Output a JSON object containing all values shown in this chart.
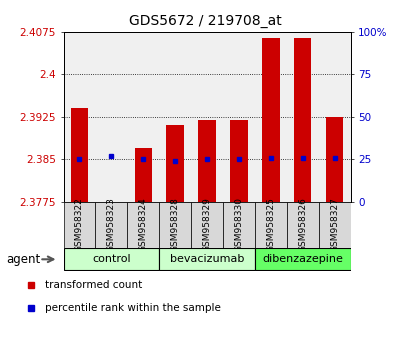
{
  "title": "GDS5672 / 219708_at",
  "samples": [
    "GSM958322",
    "GSM958323",
    "GSM958324",
    "GSM958328",
    "GSM958329",
    "GSM958330",
    "GSM958325",
    "GSM958326",
    "GSM958327"
  ],
  "transformed_count": [
    2.394,
    2.3775,
    2.387,
    2.391,
    2.392,
    2.392,
    2.4065,
    2.4065,
    2.3925
  ],
  "percentile_rank": [
    25,
    27,
    25,
    24,
    25,
    25,
    26,
    26,
    26
  ],
  "ylim_left": [
    2.3775,
    2.4075
  ],
  "ylim_right": [
    0,
    100
  ],
  "yticks_left": [
    2.3775,
    2.385,
    2.3925,
    2.4,
    2.4075
  ],
  "yticks_right": [
    0,
    25,
    50,
    75,
    100
  ],
  "ytick_labels_left": [
    "2.3775",
    "2.385",
    "2.3925",
    "2.4",
    "2.4075"
  ],
  "ytick_labels_right": [
    "0",
    "25",
    "50",
    "75",
    "100%"
  ],
  "group_labels": [
    "control",
    "bevacizumab",
    "dibenzazepine"
  ],
  "group_colors": [
    "#ccffcc",
    "#ccffcc",
    "#66ff66"
  ],
  "group_sizes": [
    3,
    3,
    3
  ],
  "bar_color": "#cc0000",
  "dot_color": "#0000cc",
  "bar_width": 0.55,
  "bg_color": "#ffffff",
  "plot_bg_color": "#f0f0f0",
  "label_color_left": "#cc0000",
  "label_color_right": "#0000cc",
  "legend_items": [
    "transformed count",
    "percentile rank within the sample"
  ],
  "agent_label": "agent"
}
